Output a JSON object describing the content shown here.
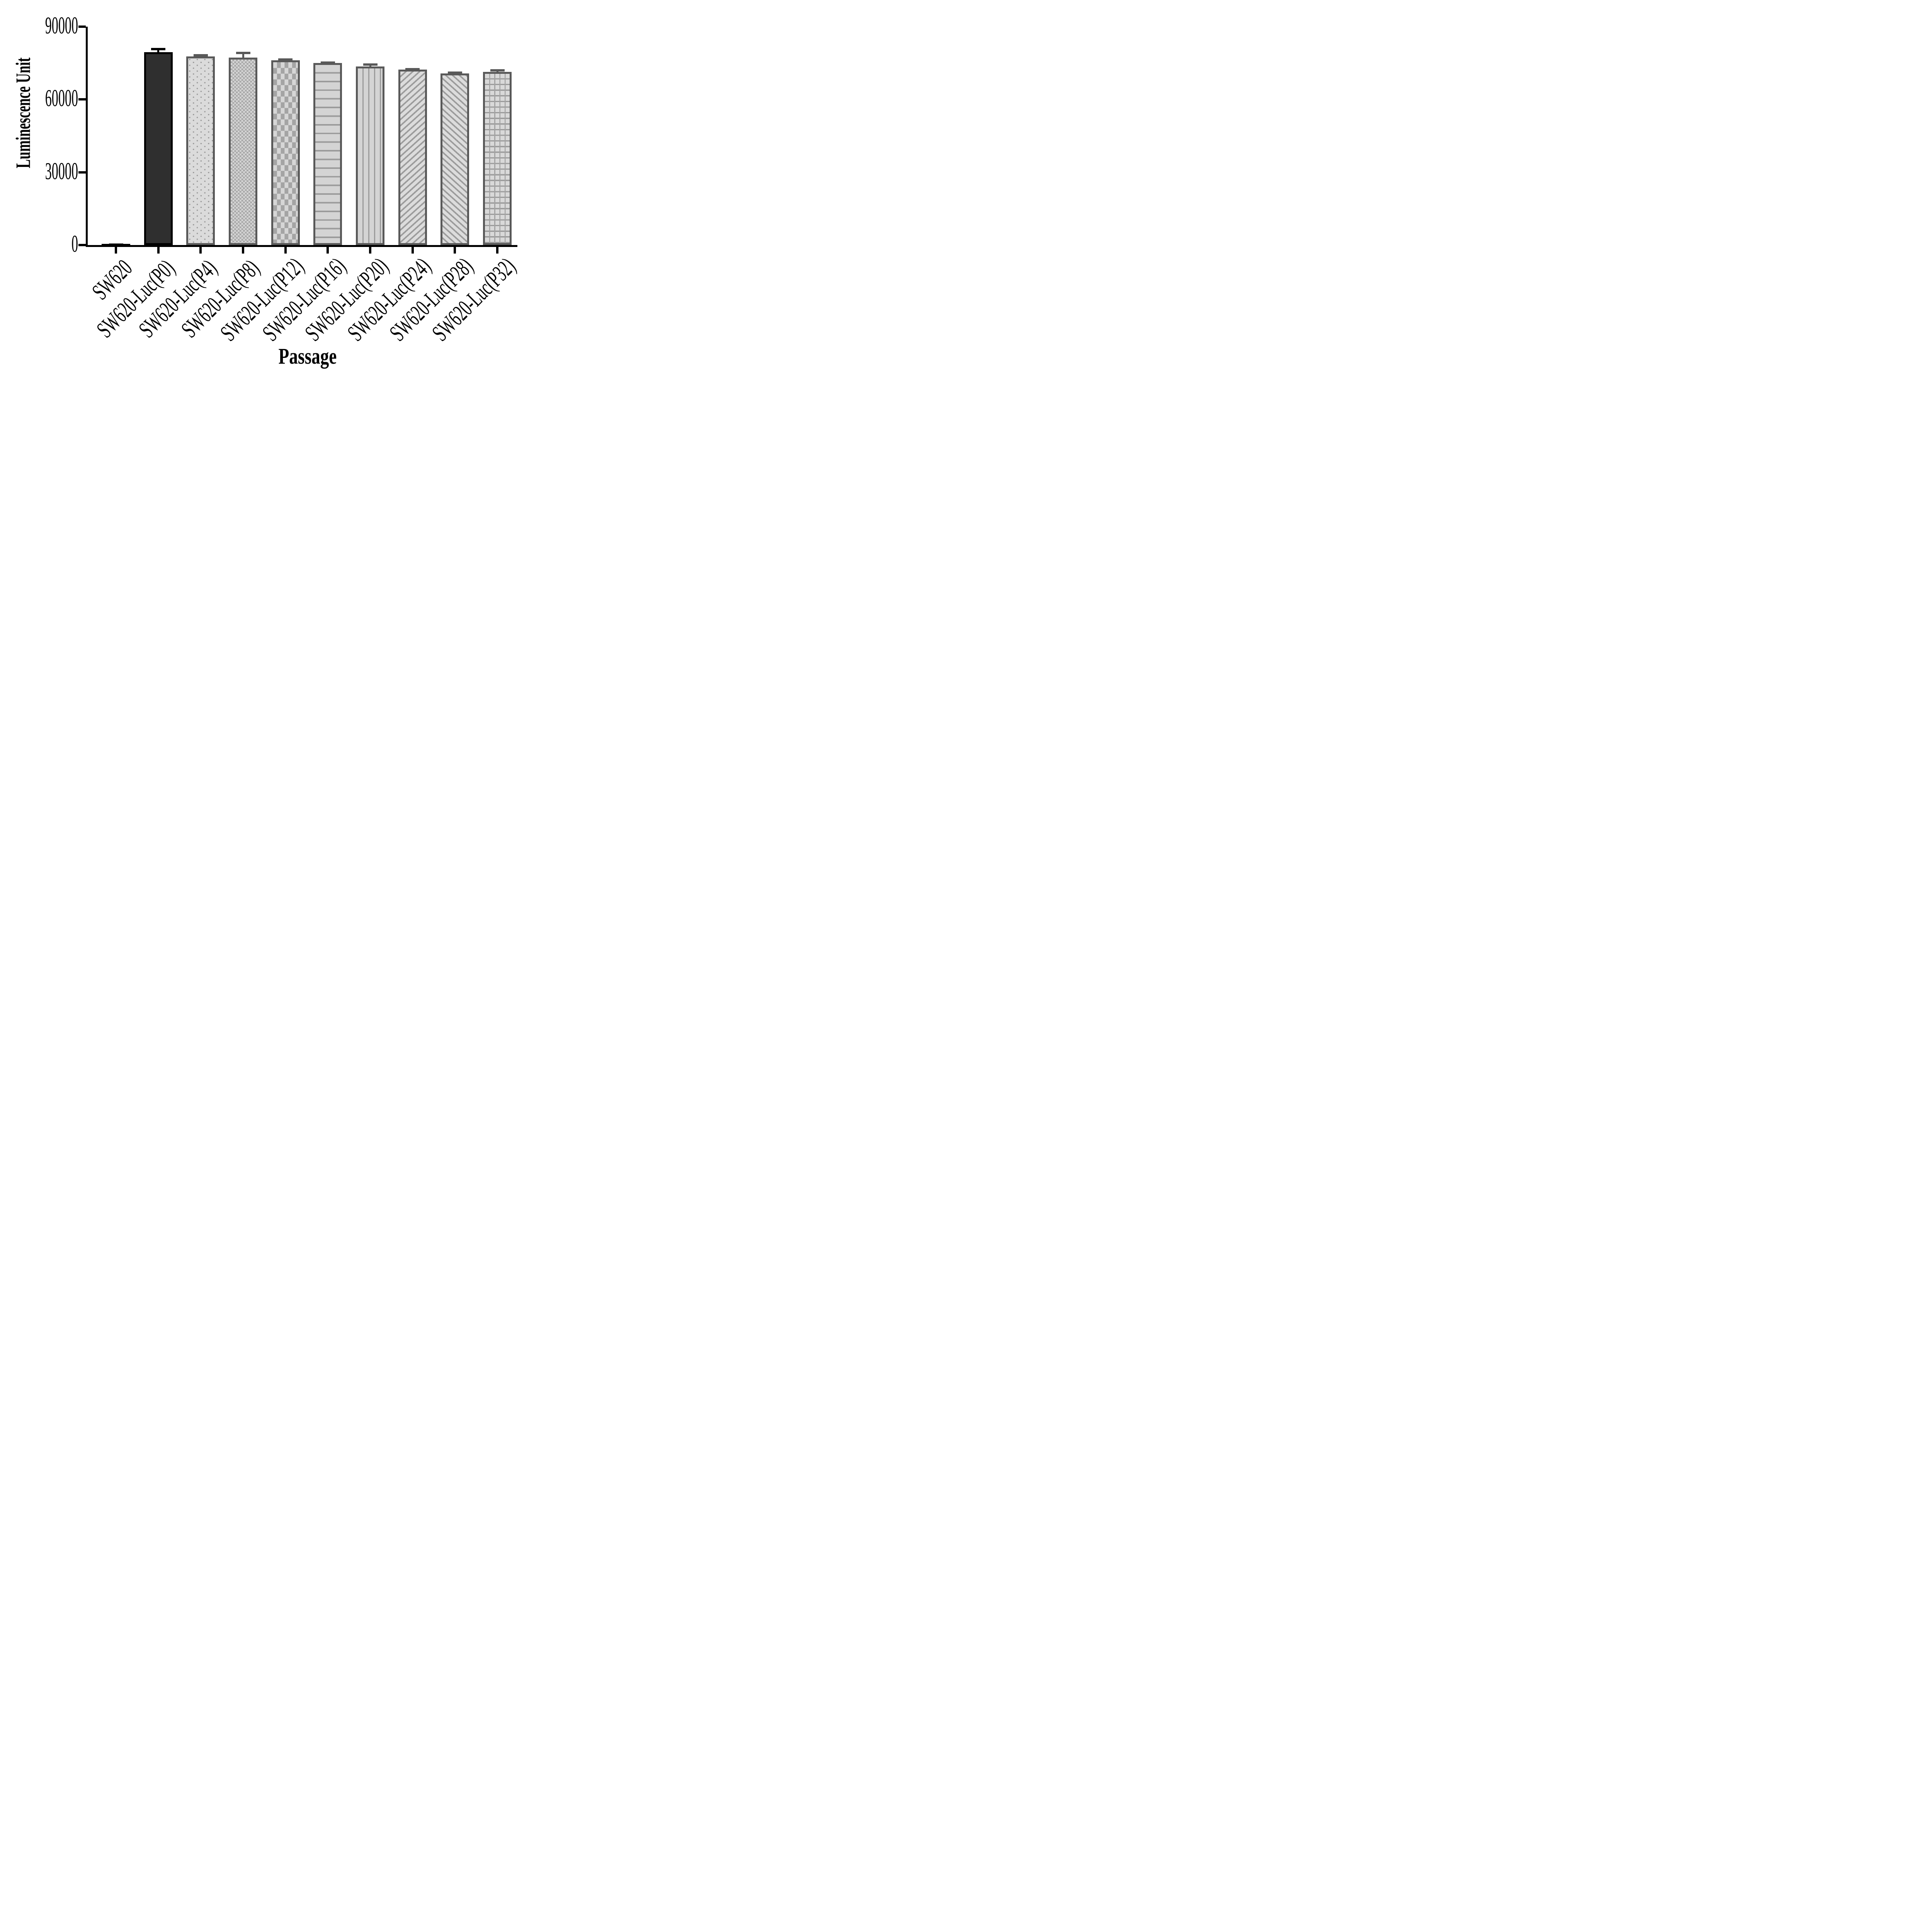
{
  "chart_data": {
    "type": "bar",
    "title": "",
    "xlabel": "Passage",
    "ylabel": "Luminescence Unit",
    "categories": [
      "SW620",
      "SW620-Luc(P0)",
      "SW620-Luc(P4)",
      "SW620-Luc(P8)",
      "SW620-Luc(P12)",
      "SW620-Luc(P16)",
      "SW620-Luc(P20)",
      "SW620-Luc(P24)",
      "SW620-Luc(P28)",
      "SW620-Luc(P32)"
    ],
    "values": [
      400,
      79500,
      77800,
      77300,
      76100,
      75000,
      73600,
      72300,
      70800,
      71400
    ],
    "errors_plus": [
      250,
      1700,
      900,
      2400,
      900,
      650,
      1300,
      650,
      700,
      1000
    ],
    "ylim": [
      0,
      90000
    ],
    "yticks": [
      0,
      30000,
      60000,
      90000
    ],
    "grid": false,
    "legend": "none",
    "bar_patterns": [
      "solid-black",
      "solid-dark",
      "dots",
      "checker-small",
      "checker-large",
      "horizontal-lines",
      "vertical-lines",
      "diagonal-up",
      "diagonal-down",
      "grid"
    ],
    "colors": {
      "dark_bar_fill": "#2f2f2f",
      "bar_outline": "#595959",
      "pattern_foreground": "#9b9b9b",
      "pattern_background": "#d9d9d9",
      "axis": "#000000"
    }
  }
}
